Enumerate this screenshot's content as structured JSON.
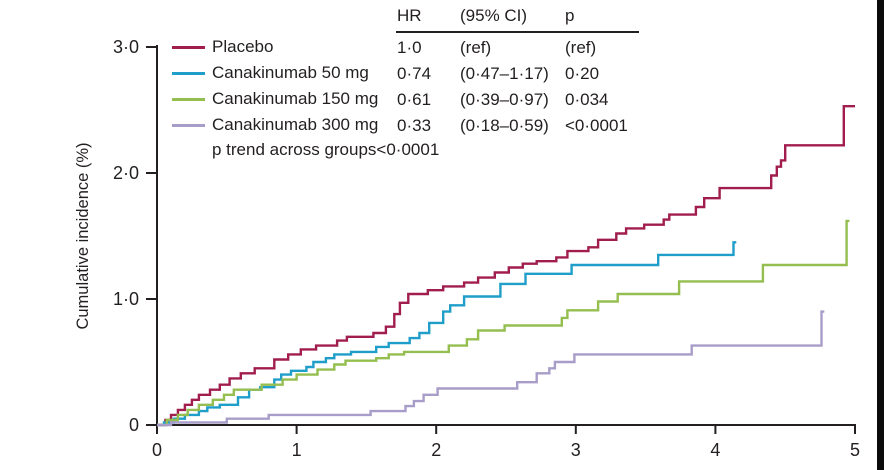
{
  "legend": {
    "items": [
      {
        "label": "Placebo"
      },
      {
        "label": "Canakinumab 50 mg"
      },
      {
        "label": "Canakinumab 150 mg"
      },
      {
        "label": "Canakinumab 300 mg"
      }
    ],
    "p_trend": "p trend across groups<0·0001"
  },
  "table": {
    "headers": {
      "hr": "HR",
      "ci": "(95% CI)",
      "p": "p"
    },
    "rows": [
      {
        "hr": "1·0",
        "ci": "(ref)",
        "p": "(ref)"
      },
      {
        "hr": "0·74",
        "ci": "(0·47–1·17)",
        "p": "0·20"
      },
      {
        "hr": "0·61",
        "ci": "(0·39–0·97)",
        "p": "0·034"
      },
      {
        "hr": "0·33",
        "ci": "(0·18–0·59)",
        "p": "<0·0001"
      }
    ]
  },
  "chart_data": {
    "type": "line",
    "variant": "step-function-cumulative-incidence",
    "title": "",
    "xlabel": "",
    "ylabel": "Cumulative incidence (%)",
    "xlim": [
      0,
      5
    ],
    "ylim": [
      0,
      3
    ],
    "grid": false,
    "legend_position": "top-left-inside",
    "xticks": [
      0,
      1,
      2,
      3,
      4,
      5
    ],
    "xtick_labels": [
      "0",
      "1",
      "2",
      "3",
      "4",
      "5"
    ],
    "ytick_labels": [
      {
        "v": 0,
        "label": "0"
      },
      {
        "v": 1,
        "label": "1·0"
      },
      {
        "v": 2,
        "label": "2·0"
      },
      {
        "v": 3,
        "label": "3·0"
      }
    ],
    "axis_color": "#231f20",
    "series": [
      {
        "name": "Placebo",
        "color": "#a11d4d",
        "points": [
          [
            0,
            0
          ],
          [
            0.06,
            0.04
          ],
          [
            0.1,
            0.08
          ],
          [
            0.15,
            0.12
          ],
          [
            0.2,
            0.16
          ],
          [
            0.25,
            0.2
          ],
          [
            0.3,
            0.24
          ],
          [
            0.38,
            0.28
          ],
          [
            0.45,
            0.32
          ],
          [
            0.52,
            0.37
          ],
          [
            0.6,
            0.41
          ],
          [
            0.7,
            0.45
          ],
          [
            0.84,
            0.52
          ],
          [
            0.94,
            0.56
          ],
          [
            1.03,
            0.6
          ],
          [
            1.14,
            0.63
          ],
          [
            1.29,
            0.67
          ],
          [
            1.36,
            0.7
          ],
          [
            1.55,
            0.73
          ],
          [
            1.64,
            0.78
          ],
          [
            1.7,
            0.88
          ],
          [
            1.74,
            0.97
          ],
          [
            1.8,
            1.04
          ],
          [
            1.94,
            1.07
          ],
          [
            2.05,
            1.1
          ],
          [
            2.2,
            1.13
          ],
          [
            2.3,
            1.17
          ],
          [
            2.42,
            1.21
          ],
          [
            2.52,
            1.25
          ],
          [
            2.62,
            1.28
          ],
          [
            2.72,
            1.3
          ],
          [
            2.86,
            1.33
          ],
          [
            2.94,
            1.38
          ],
          [
            3.09,
            1.41
          ],
          [
            3.16,
            1.47
          ],
          [
            3.29,
            1.52
          ],
          [
            3.36,
            1.56
          ],
          [
            3.49,
            1.59
          ],
          [
            3.63,
            1.63
          ],
          [
            3.67,
            1.67
          ],
          [
            3.86,
            1.73
          ],
          [
            3.92,
            1.8
          ],
          [
            4.03,
            1.88
          ],
          [
            4.4,
            1.98
          ],
          [
            4.44,
            2.05
          ],
          [
            4.47,
            2.1
          ],
          [
            4.5,
            2.22
          ],
          [
            4.92,
            2.53
          ],
          [
            5,
            2.53
          ]
        ]
      },
      {
        "name": "Canakinumab 50 mg",
        "color": "#1f9ec9",
        "points": [
          [
            0,
            0
          ],
          [
            0.05,
            0.02
          ],
          [
            0.12,
            0.05
          ],
          [
            0.2,
            0.08
          ],
          [
            0.3,
            0.11
          ],
          [
            0.36,
            0.14
          ],
          [
            0.45,
            0.16
          ],
          [
            0.58,
            0.22
          ],
          [
            0.66,
            0.28
          ],
          [
            0.74,
            0.3
          ],
          [
            0.84,
            0.36
          ],
          [
            0.89,
            0.4
          ],
          [
            0.96,
            0.43
          ],
          [
            1.07,
            0.46
          ],
          [
            1.12,
            0.5
          ],
          [
            1.21,
            0.53
          ],
          [
            1.27,
            0.56
          ],
          [
            1.39,
            0.58
          ],
          [
            1.57,
            0.62
          ],
          [
            1.66,
            0.65
          ],
          [
            1.81,
            0.69
          ],
          [
            1.88,
            0.73
          ],
          [
            1.95,
            0.81
          ],
          [
            2.05,
            0.9
          ],
          [
            2.1,
            0.95
          ],
          [
            2.2,
            1.02
          ],
          [
            2.46,
            1.12
          ],
          [
            2.64,
            1.2
          ],
          [
            2.97,
            1.27
          ],
          [
            3.59,
            1.35
          ],
          [
            4.13,
            1.45
          ],
          [
            4.15,
            1.45
          ]
        ]
      },
      {
        "name": "Canakinumab 150 mg",
        "color": "#94be4f",
        "points": [
          [
            0,
            0
          ],
          [
            0.07,
            0.04
          ],
          [
            0.15,
            0.08
          ],
          [
            0.22,
            0.12
          ],
          [
            0.3,
            0.16
          ],
          [
            0.4,
            0.2
          ],
          [
            0.48,
            0.24
          ],
          [
            0.55,
            0.28
          ],
          [
            0.75,
            0.32
          ],
          [
            0.9,
            0.36
          ],
          [
            1.0,
            0.4
          ],
          [
            1.15,
            0.44
          ],
          [
            1.27,
            0.48
          ],
          [
            1.35,
            0.51
          ],
          [
            1.57,
            0.53
          ],
          [
            1.66,
            0.56
          ],
          [
            1.77,
            0.58
          ],
          [
            2.09,
            0.63
          ],
          [
            2.22,
            0.68
          ],
          [
            2.3,
            0.75
          ],
          [
            2.49,
            0.79
          ],
          [
            2.9,
            0.85
          ],
          [
            2.94,
            0.91
          ],
          [
            3.16,
            0.98
          ],
          [
            3.3,
            1.04
          ],
          [
            3.74,
            1.14
          ],
          [
            4.34,
            1.27
          ],
          [
            4.94,
            1.62
          ],
          [
            4.96,
            1.62
          ]
        ]
      },
      {
        "name": "Canakinumab 300 mg",
        "color": "#a89cc9",
        "points": [
          [
            0,
            0
          ],
          [
            0.1,
            0.02
          ],
          [
            0.5,
            0.05
          ],
          [
            0.8,
            0.08
          ],
          [
            1.53,
            0.11
          ],
          [
            1.78,
            0.15
          ],
          [
            1.84,
            0.19
          ],
          [
            1.91,
            0.24
          ],
          [
            2.01,
            0.29
          ],
          [
            2.58,
            0.34
          ],
          [
            2.72,
            0.41
          ],
          [
            2.81,
            0.45
          ],
          [
            2.85,
            0.5
          ],
          [
            2.99,
            0.56
          ],
          [
            3.83,
            0.63
          ],
          [
            4.76,
            0.9
          ],
          [
            4.78,
            0.9
          ]
        ]
      }
    ]
  }
}
